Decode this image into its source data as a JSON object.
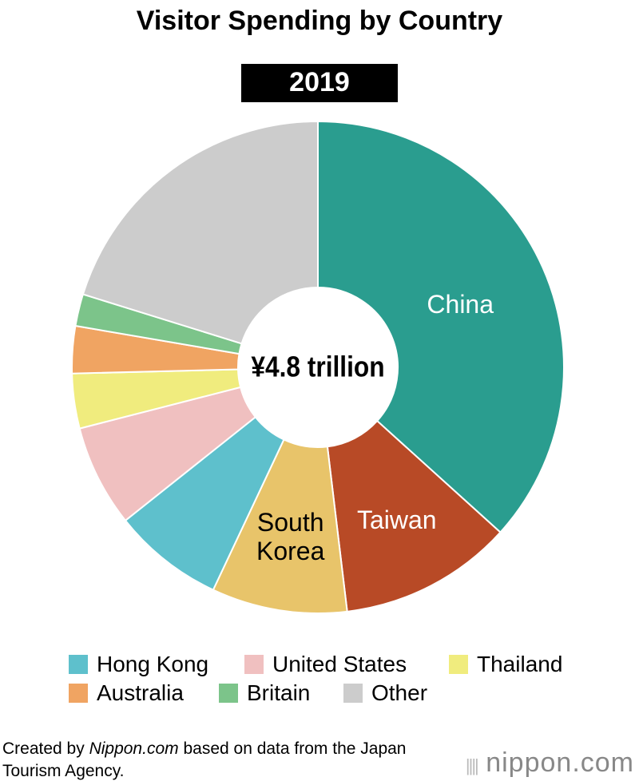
{
  "chart_data": {
    "type": "donut",
    "title": "Visitor Spending by Country",
    "subtitle": "2019",
    "center_label": "¥4.8 trillion",
    "categories": [
      "China",
      "Taiwan",
      "South Korea",
      "Hong Kong",
      "United States",
      "Thailand",
      "Australia",
      "Britain",
      "Other"
    ],
    "values": [
      36.7,
      11.4,
      8.9,
      7.3,
      6.7,
      3.6,
      3.1,
      2.1,
      20.2
    ],
    "colors": [
      "#2a9d8f",
      "#b84a26",
      "#e8c46a",
      "#5ec0cc",
      "#f0c0c0",
      "#f0ec7e",
      "#f0a462",
      "#7cc48a",
      "#cccccc"
    ]
  },
  "footer": {
    "prefix": "Created by ",
    "site": "Nippon.com",
    "suffix": " based on data from the Japan Tourism Agency.",
    "logo": "nippon.com"
  }
}
